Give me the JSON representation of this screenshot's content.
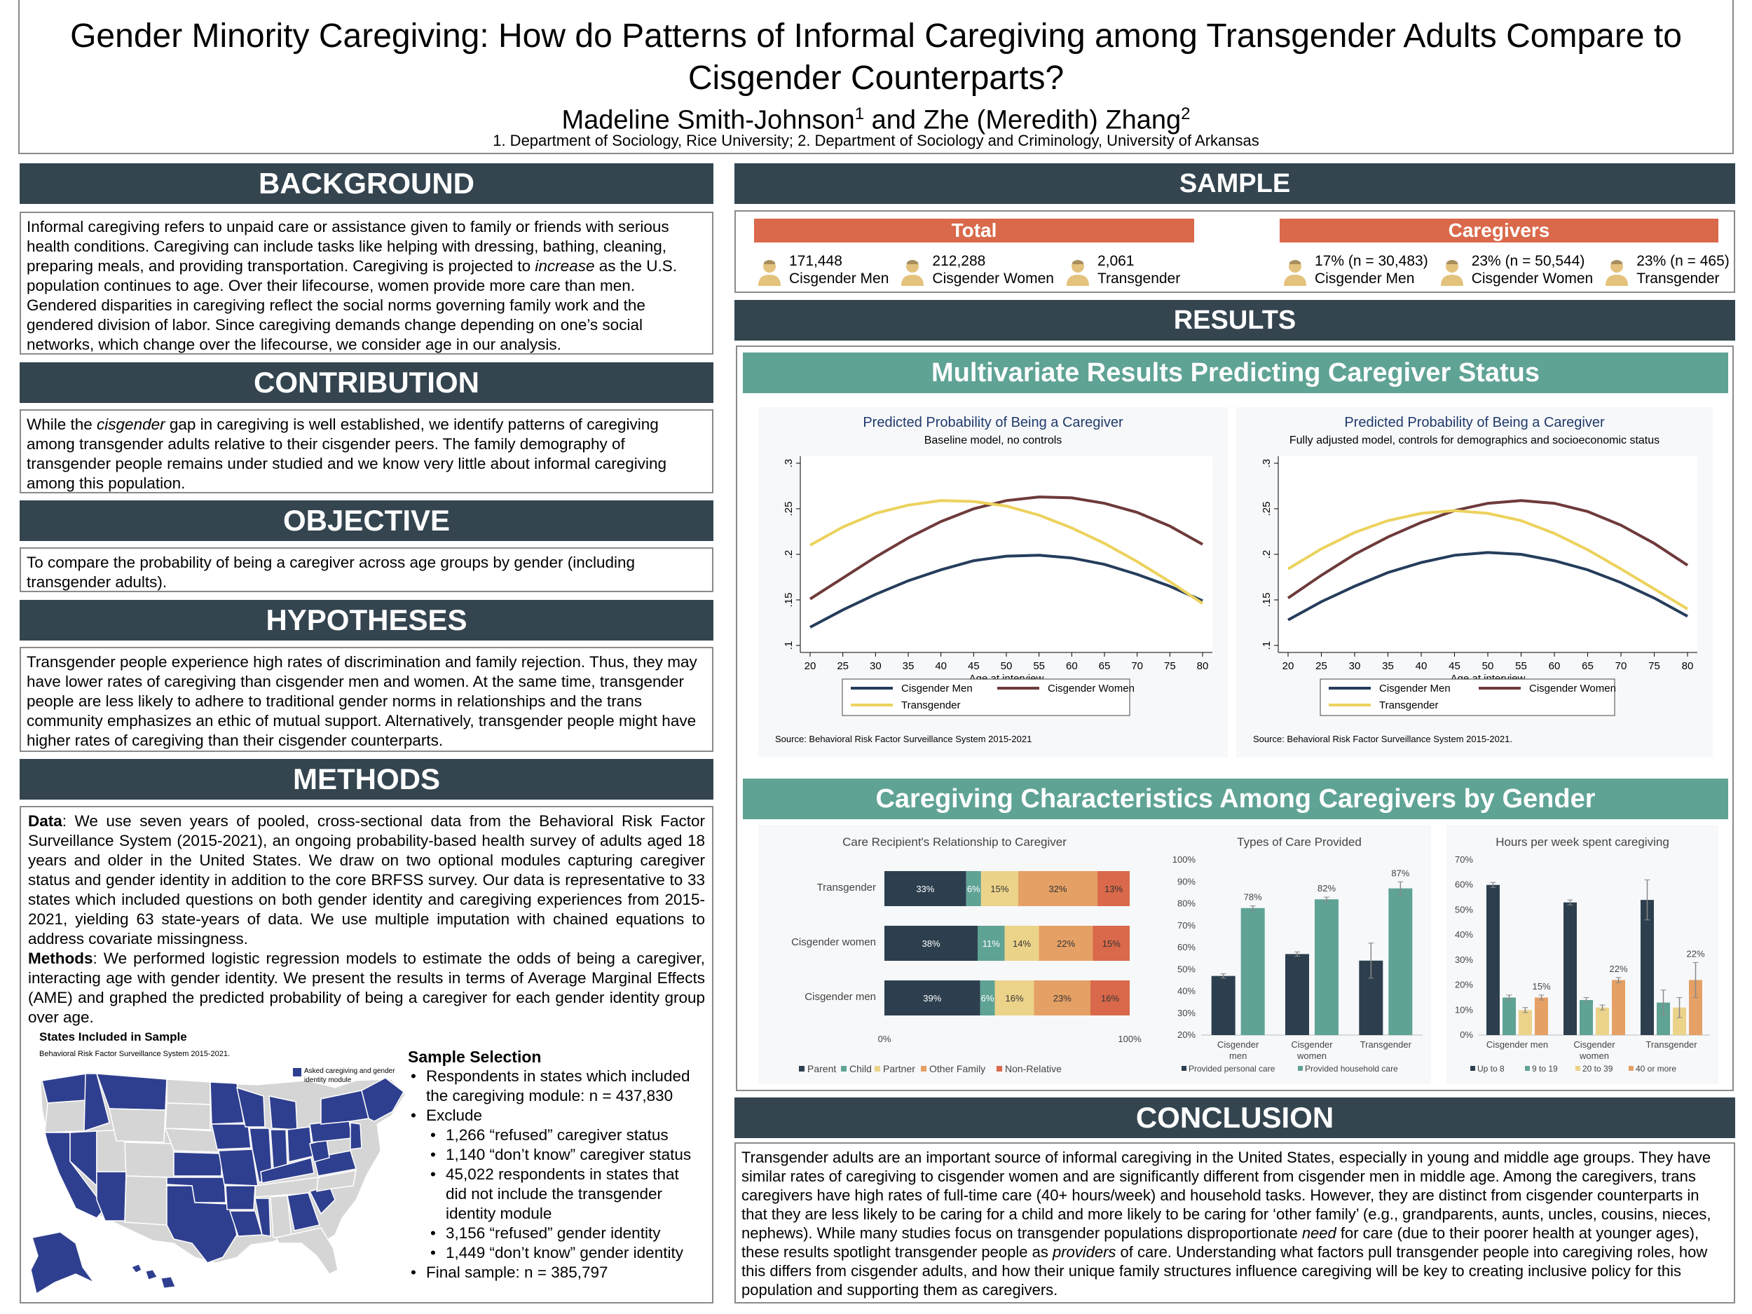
{
  "title": {
    "line1": "Gender Minority Caregiving: How do Patterns of Informal Caregiving among Transgender Adults Compare to",
    "line2": "Cisgender Counterparts?",
    "author1": "Madeline Smith-Johnson",
    "sup1": "1",
    "and": " and ",
    "author2": "Zhe (Meredith) Zhang",
    "sup2": "2",
    "affiliations": "1. Department of Sociology, Rice University; 2. Department of Sociology and Criminology, University of Arkansas"
  },
  "background": {
    "heading": "BACKGROUND",
    "p_a": "Informal caregiving refers to unpaid care or assistance given to family or friends with serious health conditions. Caregiving can include tasks like helping with dressing, bathing, cleaning, preparing meals, and providing transportation. Caregiving is projected to ",
    "p_em": "increase",
    "p_b": " as the U.S. population continues to age. Over their lifecourse, women provide more care than men. Gendered disparities in caregiving reflect the social norms governing family work and the gendered division of labor. Since caregiving demands change depending on one’s social networks, which change over the lifecourse, we consider age in our analysis."
  },
  "contribution": {
    "heading": "CONTRIBUTION",
    "p_a": "While the ",
    "p_em": "cisgender",
    "p_b": " gap in caregiving is well established, we identify patterns of caregiving among transgender adults relative to their cisgender peers. The family demography of transgender people remains under studied and we know very little about informal caregiving among this population."
  },
  "objective": {
    "heading": "OBJECTIVE",
    "text": "To compare the probability of being a caregiver across age groups by gender (including transgender adults)."
  },
  "hypotheses": {
    "heading": "HYPOTHESES",
    "text": "Transgender people experience high rates of discrimination and family rejection. Thus, they may have lower rates of caregiving than cisgender men and women. At the same time, transgender people are less likely to adhere to traditional gender norms in relationships and the trans community emphasizes an ethic of mutual support. Alternatively, transgender people might have higher rates of caregiving than their cisgender counterparts."
  },
  "methods": {
    "heading": "METHODS",
    "data_label": "Data",
    "data_text": ": We use seven years of pooled, cross-sectional data from the Behavioral Risk Factor Surveillance System (2015-2021), an ongoing probability-based health survey of adults aged 18 years and older in the United States. We draw on two optional modules capturing caregiver status and gender identity in addition to the core BRFSS survey. Our data is representative to 33 states which included questions on both gender identity and caregiving experiences from 2015-2021, yielding 63 state-years of data. We use multiple imputation with chained equations to address covariate missingness.",
    "methods_label": "Methods",
    "methods_text": ": We performed logistic regression models to estimate the odds of being a caregiver, interacting age with gender identity. We present the results in terms of Average Marginal Effects (AME) and graphed the predicted probability of being a caregiver for each gender identity group over age.",
    "map_title": "States Included in Sample",
    "map_subtitle": "Behavioral Risk Factor Surveillance System 2015-2021.",
    "map_legend_line1": "Asked caregiving and gender",
    "map_legend_line2": "identity module",
    "sample_heading": "Sample Selection",
    "s1a": "Respondents in states which included",
    "s1b": "the caregiving module: n = 437,830",
    "s2": "Exclude",
    "e1": "1,266 “refused” caregiver status",
    "e2": "1,140 “don’t know” caregiver status",
    "e3a": "45,022 respondents in states that",
    "e3b": "did not include the transgender",
    "e3c": "identity module",
    "e4": "3,156 “refused” gender identity",
    "e5": "1,449 “don’t know” gender identity",
    "s3": "Final sample: n = 385,797"
  },
  "sample": {
    "heading": "SAMPLE",
    "total_label": "Total",
    "caregivers_label": "Caregivers",
    "total": [
      {
        "value": "171,448",
        "group": "Cisgender Men"
      },
      {
        "value": "212,288",
        "group": "Cisgender Women"
      },
      {
        "value": "2,061",
        "group": "Transgender"
      }
    ],
    "caregivers": [
      {
        "value": "17% (n = 30,483)",
        "group": "Cisgender Men"
      },
      {
        "value": "23% (n = 50,544)",
        "group": "Cisgender Women"
      },
      {
        "value": "23% (n = 465)",
        "group": "Transgender"
      }
    ]
  },
  "results": {
    "heading": "RESULTS",
    "multi_heading": "Multivariate Results Predicting Caregiver Status",
    "char_heading": "Caregiving Characteristics Among Caregivers by Gender"
  },
  "conclusion": {
    "heading": "CONCLUSION",
    "p_a": "Transgender adults are an important source of informal caregiving in the United States, especially in young and middle age groups. They have similar rates of caregiving to cisgender women and are significantly different from cisgender men in middle age. Among the caregivers, trans caregivers have high rates of full-time care (40+ hours/week) and household tasks. However, they are distinct from cisgender counterparts in that they are less likely to be caring for a child and more likely to be caring for ‘other family’ (e.g., grandparents, aunts, uncles, cousins, nieces, nephews). While many studies focus on transgender populations disproportionate ",
    "p_em1": "need",
    "p_b": " for care (due to their poorer health at younger ages), these results spotlight transgender people as ",
    "p_em2": "providers",
    "p_c": " of care. Understanding what factors pull transgender people into caregiving roles, how this differs from cisgender adults, and how their unique family structures influence caregiving will be key to creating inclusive policy for this population and supporting them as caregivers."
  },
  "colors": {
    "header_bg": "#344550",
    "teal": "#5fa395",
    "orange": "#d9694a",
    "icon": "#e3c27d",
    "men": "#263d5c",
    "women": "#6e3a3a",
    "trans": "#ecd25d",
    "parent": "#2d3f4e",
    "child": "#5fa395",
    "partner": "#ecd38a",
    "other_family": "#e5a065",
    "non_relative": "#d9694a",
    "state_in": "#2f3f8f",
    "state_out": "#d5d5d5"
  },
  "chart_data": [
    {
      "type": "line",
      "title": "Predicted Probability of Being a Caregiver",
      "subtitle": "Baseline model, no controls",
      "xlabel": "Age at interview",
      "x": [
        20,
        25,
        30,
        35,
        40,
        45,
        50,
        55,
        60,
        65,
        70,
        75,
        80
      ],
      "xticks": [
        "20",
        "25",
        "30",
        "35",
        "40",
        "45",
        "50",
        "55",
        "60",
        "65",
        "70",
        "75",
        "80"
      ],
      "yticks": [
        ".1",
        ".15",
        ".2",
        ".25",
        ".3"
      ],
      "ylim": [
        0.1,
        0.3
      ],
      "series": [
        {
          "name": "Cisgender Men",
          "values": [
            0.12,
            0.139,
            0.156,
            0.171,
            0.183,
            0.193,
            0.198,
            0.199,
            0.196,
            0.189,
            0.178,
            0.165,
            0.149
          ]
        },
        {
          "name": "Cisgender Women",
          "values": [
            0.151,
            0.174,
            0.197,
            0.218,
            0.236,
            0.25,
            0.259,
            0.263,
            0.262,
            0.256,
            0.246,
            0.231,
            0.211
          ]
        },
        {
          "name": "Transgender",
          "values": [
            0.21,
            0.23,
            0.245,
            0.254,
            0.259,
            0.258,
            0.253,
            0.243,
            0.229,
            0.212,
            0.192,
            0.17,
            0.146
          ]
        }
      ],
      "source": "Source: Behavioral Risk Factor Surveillance System 2015-2021"
    },
    {
      "type": "line",
      "title": "Predicted Probability of Being a Caregiver",
      "subtitle": "Fully adjusted model, controls for demographics and socioeconomic status",
      "xlabel": "Age at interview",
      "x": [
        20,
        25,
        30,
        35,
        40,
        45,
        50,
        55,
        60,
        65,
        70,
        75,
        80
      ],
      "xticks": [
        "20",
        "25",
        "30",
        "35",
        "40",
        "45",
        "50",
        "55",
        "60",
        "65",
        "70",
        "75",
        "80"
      ],
      "yticks": [
        ".1",
        ".15",
        ".2",
        ".25",
        ".3"
      ],
      "ylim": [
        0.1,
        0.3
      ],
      "series": [
        {
          "name": "Cisgender Men",
          "values": [
            0.128,
            0.148,
            0.165,
            0.18,
            0.191,
            0.199,
            0.202,
            0.2,
            0.193,
            0.183,
            0.169,
            0.152,
            0.132
          ]
        },
        {
          "name": "Cisgender Women",
          "values": [
            0.152,
            0.177,
            0.2,
            0.219,
            0.235,
            0.248,
            0.256,
            0.259,
            0.256,
            0.247,
            0.232,
            0.212,
            0.188
          ]
        },
        {
          "name": "Transgender",
          "values": [
            0.184,
            0.206,
            0.224,
            0.237,
            0.245,
            0.248,
            0.245,
            0.237,
            0.223,
            0.205,
            0.184,
            0.162,
            0.14
          ]
        }
      ],
      "source": "Source: Behavioral Risk Factor Surveillance System 2015-2021."
    },
    {
      "type": "bar",
      "stacked": true,
      "orientation": "horizontal",
      "title": "Care Recipient's Relationship to Caregiver",
      "categories": [
        "Transgender",
        "Cisgender women",
        "Cisgender men"
      ],
      "xticks": [
        "0%",
        "100%"
      ],
      "series": [
        {
          "name": "Parent",
          "values": [
            33,
            38,
            39
          ],
          "labels": [
            "33%",
            "38%",
            "39%"
          ]
        },
        {
          "name": "Child",
          "values": [
            6,
            11,
            6
          ],
          "labels": [
            "6%",
            "11%",
            "6%"
          ]
        },
        {
          "name": "Partner",
          "values": [
            15,
            14,
            16
          ],
          "labels": [
            "15%",
            "14%",
            "16%"
          ]
        },
        {
          "name": "Other Family",
          "values": [
            32,
            22,
            23
          ],
          "labels": [
            "32%",
            "22%",
            "23%"
          ]
        },
        {
          "name": "Non-Relative",
          "values": [
            13,
            15,
            16
          ],
          "labels": [
            "13%",
            "15%",
            "16%"
          ]
        }
      ]
    },
    {
      "type": "bar",
      "title": "Types of Care Provided",
      "categories": [
        "Cisgender men",
        "Cisgender women",
        "Transgender"
      ],
      "category_lines": [
        [
          "Cisgender",
          "men"
        ],
        [
          "Cisgender",
          "women"
        ],
        [
          "Transgender"
        ]
      ],
      "yticks": [
        "20%",
        "30%",
        "40%",
        "50%",
        "60%",
        "70%",
        "80%",
        "90%",
        "100%"
      ],
      "ylim": [
        20,
        100
      ],
      "series": [
        {
          "name": "Provided personal care",
          "values": [
            47,
            57,
            54
          ],
          "error": [
            1,
            1,
            8
          ],
          "labels": [
            "",
            "",
            ""
          ]
        },
        {
          "name": "Provided household care",
          "values": [
            78,
            82,
            87
          ],
          "error": [
            1,
            1,
            3
          ],
          "labels": [
            "78%",
            "82%",
            "87%"
          ]
        }
      ]
    },
    {
      "type": "bar",
      "title": "Hours per week spent caregiving",
      "categories": [
        "Cisgender men",
        "Cisgender women",
        "Transgender"
      ],
      "category_lines": [
        [
          "Cisgender men"
        ],
        [
          "Cisgender",
          "women"
        ],
        [
          "Transgender"
        ]
      ],
      "yticks": [
        "0%",
        "10%",
        "20%",
        "30%",
        "40%",
        "50%",
        "60%",
        "70%"
      ],
      "ylim": [
        0,
        70
      ],
      "series": [
        {
          "name": "Up to 8",
          "values": [
            60,
            53,
            54
          ],
          "error": [
            1,
            1,
            8
          ],
          "labels": [
            "",
            "",
            ""
          ]
        },
        {
          "name": "9 to 19",
          "values": [
            15,
            14,
            13
          ],
          "error": [
            1,
            1,
            5
          ],
          "labels": [
            "",
            "",
            ""
          ]
        },
        {
          "name": "20 to 39",
          "values": [
            10,
            11,
            11
          ],
          "error": [
            1,
            1,
            4
          ],
          "labels": [
            "",
            "",
            ""
          ]
        },
        {
          "name": "40 or more",
          "values": [
            15,
            22,
            22
          ],
          "error": [
            1,
            1,
            7
          ],
          "labels": [
            "15%",
            "22%",
            "22%"
          ]
        }
      ]
    }
  ]
}
